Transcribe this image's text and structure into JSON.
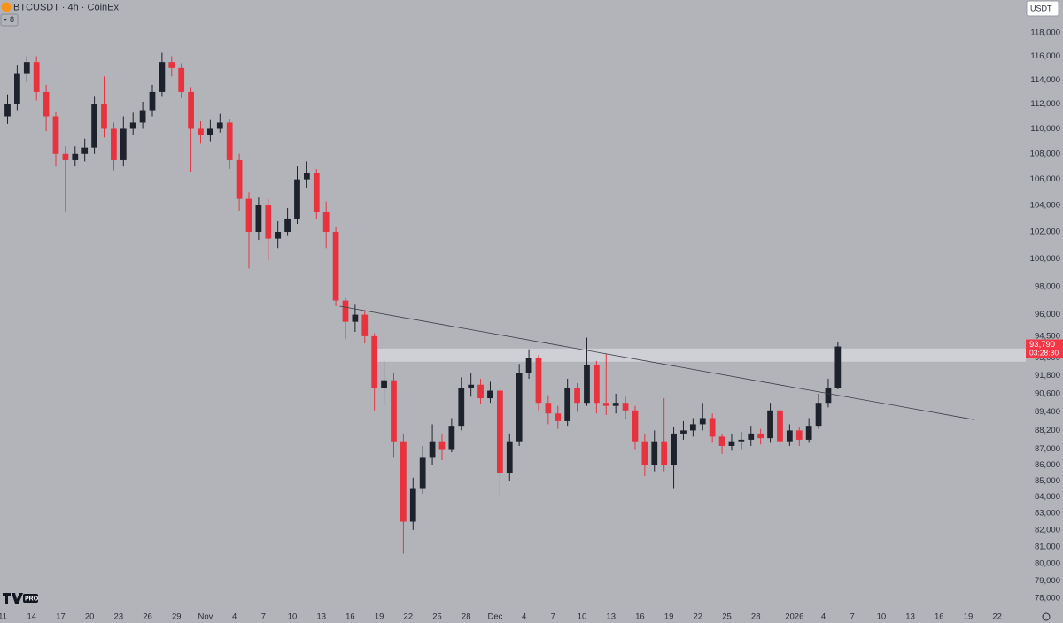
{
  "chart_data": {
    "type": "candlestick",
    "title": "BTCUSDT · 4h · CoinEx",
    "indicator_badge": 8,
    "currency_button": "USDT",
    "logo_badge": "PRO",
    "log_scale": true,
    "grid": false,
    "background": "#b2b4ba",
    "xlim": [
      -0.28,
      105.23
    ],
    "xticks": [
      {
        "value": 0,
        "label": "11"
      },
      {
        "value": 3,
        "label": "14"
      },
      {
        "value": 6,
        "label": "17"
      },
      {
        "value": 9,
        "label": "20"
      },
      {
        "value": 12,
        "label": "23"
      },
      {
        "value": 15,
        "label": "26"
      },
      {
        "value": 18,
        "label": "29"
      },
      {
        "value": 21,
        "label": "Nov"
      },
      {
        "value": 24,
        "label": "4"
      },
      {
        "value": 27,
        "label": "7"
      },
      {
        "value": 30,
        "label": "10"
      },
      {
        "value": 33,
        "label": "13"
      },
      {
        "value": 36,
        "label": "16"
      },
      {
        "value": 39,
        "label": "19"
      },
      {
        "value": 42,
        "label": "22"
      },
      {
        "value": 45,
        "label": "25"
      },
      {
        "value": 48,
        "label": "28"
      },
      {
        "value": 51,
        "label": "Dec"
      },
      {
        "value": 54,
        "label": "4"
      },
      {
        "value": 57,
        "label": "7"
      },
      {
        "value": 60,
        "label": "10"
      },
      {
        "value": 63,
        "label": "13"
      },
      {
        "value": 66,
        "label": "16"
      },
      {
        "value": 69,
        "label": "19"
      },
      {
        "value": 72,
        "label": "22"
      },
      {
        "value": 75,
        "label": "25"
      },
      {
        "value": 78,
        "label": "28"
      },
      {
        "value": 82,
        "label": "2026"
      },
      {
        "value": 85,
        "label": "4"
      },
      {
        "value": 88,
        "label": "7"
      },
      {
        "value": 91,
        "label": "10"
      },
      {
        "value": 94,
        "label": "13"
      },
      {
        "value": 97,
        "label": "16"
      },
      {
        "value": 100,
        "label": "19"
      },
      {
        "value": 103,
        "label": "22"
      }
    ],
    "ylim": [
      77300,
      120870
    ],
    "yticks": [
      {
        "value": 118000,
        "label": "118,000"
      },
      {
        "value": 116000,
        "label": "116,000"
      },
      {
        "value": 114000,
        "label": "114,000"
      },
      {
        "value": 112000,
        "label": "112,000"
      },
      {
        "value": 110000,
        "label": "110,000"
      },
      {
        "value": 108000,
        "label": "108,000"
      },
      {
        "value": 106000,
        "label": "106,000"
      },
      {
        "value": 104000,
        "label": "104,000"
      },
      {
        "value": 102000,
        "label": "102,000"
      },
      {
        "value": 100000,
        "label": "100,000"
      },
      {
        "value": 98000,
        "label": "98,000"
      },
      {
        "value": 96000,
        "label": "96,000"
      },
      {
        "value": 94500,
        "label": "94,500"
      },
      {
        "value": 93000,
        "label": "93,000"
      },
      {
        "value": 91800,
        "label": "91,800"
      },
      {
        "value": 90600,
        "label": "90,600"
      },
      {
        "value": 89400,
        "label": "89,400"
      },
      {
        "value": 88200,
        "label": "88,200"
      },
      {
        "value": 87000,
        "label": "87,000"
      },
      {
        "value": 86000,
        "label": "86,000"
      },
      {
        "value": 85000,
        "label": "85,000"
      },
      {
        "value": 84000,
        "label": "84,000"
      },
      {
        "value": 83000,
        "label": "83,000"
      },
      {
        "value": 82000,
        "label": "82,000"
      },
      {
        "value": 81000,
        "label": "81,000"
      },
      {
        "value": 80000,
        "label": "80,000"
      },
      {
        "value": 79000,
        "label": "79,000"
      },
      {
        "value": 78000,
        "label": "78,000"
      }
    ],
    "candles": {
      "up_color": "#1e222d",
      "down_color": "#e8333f",
      "x": [
        0.5,
        1.5,
        2.5,
        3.5,
        4.5,
        5.5,
        6.5,
        7.5,
        8.5,
        9.5,
        10.5,
        11.5,
        12.5,
        13.5,
        14.5,
        15.5,
        16.5,
        17.5,
        18.5,
        19.5,
        20.5,
        21.5,
        22.5,
        23.5,
        24.5,
        25.5,
        26.5,
        27.5,
        28.5,
        29.5,
        30.5,
        31.5,
        32.5,
        33.5,
        34.5,
        35.5,
        36.5,
        37.5,
        38.5,
        39.5,
        40.5,
        41.5,
        42.5,
        43.5,
        44.5,
        45.5,
        46.5,
        47.5,
        48.5,
        49.5,
        50.5,
        51.5,
        52.5,
        53.5,
        54.5,
        55.5,
        56.5,
        57.5,
        58.5,
        59.5,
        60.5,
        61.5,
        62.5,
        63.5,
        64.5,
        65.5,
        66.5,
        67.5,
        68.5,
        69.5,
        70.5,
        71.5,
        72.5,
        73.5,
        74.5,
        75.5,
        76.5,
        77.5,
        78.5,
        79.5,
        80.5,
        81.5,
        82.5,
        83.5,
        84.5,
        85.5,
        86.5
      ],
      "open": [
        111000,
        112000,
        114500,
        115500,
        113000,
        111000,
        108000,
        107500,
        108000,
        108500,
        112000,
        110000,
        107500,
        110000,
        110500,
        111500,
        113000,
        115500,
        115000,
        113000,
        110000,
        109500,
        110000,
        110500,
        107500,
        104500,
        102000,
        104000,
        101500,
        102000,
        103000,
        106000,
        106500,
        103500,
        102000,
        97000,
        95500,
        96000,
        94500,
        91000,
        91500,
        87500,
        82500,
        84500,
        86500,
        87500,
        87000,
        88500,
        91000,
        91200,
        90300,
        90800,
        85500,
        87500,
        92000,
        93000,
        90000,
        89300,
        88800,
        91000,
        90000,
        92500,
        90000,
        89800,
        90000,
        89500,
        87500,
        86000,
        87500,
        86000,
        88000,
        88200,
        88600,
        89000,
        87800,
        87200,
        87500,
        87600,
        88000,
        87700,
        89500,
        87500,
        88200,
        87600,
        88500,
        90000,
        91000
      ],
      "high": [
        112800,
        115200,
        116000,
        116000,
        113600,
        111400,
        108600,
        108600,
        109200,
        112600,
        114300,
        110500,
        111000,
        111300,
        112200,
        113600,
        116300,
        116000,
        115400,
        113400,
        110600,
        110700,
        111200,
        110800,
        108000,
        105000,
        104600,
        104500,
        102800,
        103800,
        107000,
        107400,
        106800,
        104300,
        102400,
        97200,
        96700,
        96300,
        94700,
        92800,
        92000,
        88000,
        85200,
        87200,
        88600,
        88000,
        89000,
        91700,
        92000,
        91600,
        91400,
        91000,
        88000,
        92600,
        93600,
        93200,
        90500,
        89800,
        91600,
        91300,
        94400,
        92800,
        93300,
        90600,
        90400,
        89800,
        88000,
        88200,
        90300,
        88400,
        88800,
        89000,
        90000,
        89300,
        88000,
        88000,
        88100,
        88500,
        88300,
        90000,
        89700,
        88600,
        88400,
        89000,
        90600,
        91600,
        94100
      ],
      "low": [
        110400,
        111500,
        113800,
        112300,
        109800,
        107000,
        103500,
        107000,
        107400,
        108000,
        109300,
        106700,
        107000,
        109500,
        110000,
        111000,
        112600,
        114300,
        112500,
        106600,
        108800,
        109000,
        109700,
        106800,
        103600,
        99300,
        101400,
        99900,
        100800,
        101700,
        102600,
        105300,
        103000,
        100800,
        96600,
        94300,
        94800,
        94000,
        89500,
        89800,
        86500,
        80600,
        82000,
        84200,
        86000,
        86300,
        86800,
        88200,
        90400,
        89900,
        90000,
        84000,
        85000,
        87200,
        91600,
        89500,
        88600,
        88300,
        88500,
        89400,
        89800,
        89300,
        89200,
        89300,
        88900,
        87000,
        85300,
        85600,
        85600,
        84500,
        87600,
        87800,
        88200,
        87400,
        86700,
        86900,
        87000,
        87200,
        87300,
        87400,
        87000,
        87200,
        87200,
        87400,
        88300,
        89700,
        90900
      ],
      "close": [
        112000,
        114500,
        115500,
        113000,
        111000,
        108000,
        107500,
        108000,
        108500,
        112000,
        110000,
        107500,
        110000,
        110500,
        111500,
        113000,
        115500,
        115000,
        113000,
        110000,
        109500,
        110000,
        110500,
        107500,
        104500,
        102000,
        104000,
        101500,
        102000,
        103000,
        106000,
        106500,
        103500,
        102000,
        97000,
        95500,
        96000,
        94500,
        91000,
        91500,
        87500,
        82500,
        84500,
        86500,
        87500,
        87000,
        88500,
        91000,
        91200,
        90300,
        90800,
        85500,
        87500,
        92000,
        93000,
        90000,
        89300,
        88800,
        91000,
        90000,
        92500,
        90000,
        89800,
        90000,
        89500,
        87500,
        86000,
        87500,
        86000,
        88000,
        88200,
        88600,
        89000,
        87800,
        87200,
        87500,
        87600,
        88000,
        87700,
        89500,
        87500,
        88200,
        87600,
        88500,
        90000,
        91000,
        93790
      ]
    },
    "trendline": {
      "color": "#3a3d45",
      "x": [
        34.9,
        100.6
      ],
      "values": [
        96600,
        88900
      ]
    },
    "zone": {
      "color": "#d3d5da",
      "x_start": 38.7,
      "range": [
        92750,
        93650
      ]
    },
    "last_price": {
      "value": 93790,
      "label": "93,790",
      "countdown": "03:28:30",
      "color": "#f23645"
    }
  }
}
